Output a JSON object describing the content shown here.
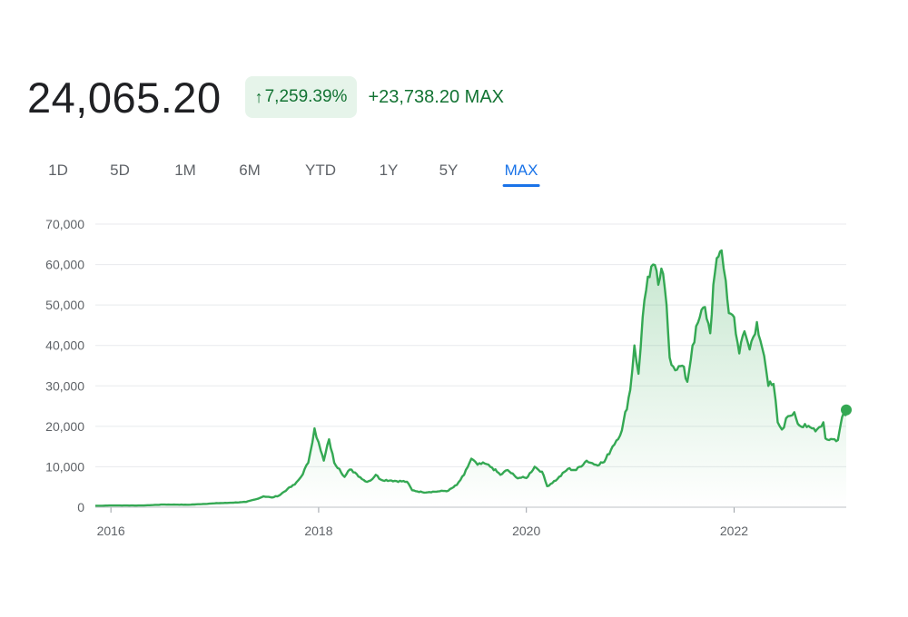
{
  "header": {
    "price": "24,065.20",
    "badge_arrow": "↑",
    "badge_percent": "7,259.39%",
    "change": "+23,738.20 MAX"
  },
  "tabs": [
    {
      "label": "1D",
      "active": false
    },
    {
      "label": "5D",
      "active": false
    },
    {
      "label": "1M",
      "active": false
    },
    {
      "label": "6M",
      "active": false
    },
    {
      "label": "YTD",
      "active": false
    },
    {
      "label": "1Y",
      "active": false
    },
    {
      "label": "5Y",
      "active": false
    },
    {
      "label": "MAX",
      "active": true
    }
  ],
  "colors": {
    "line": "#34a853",
    "fill": "#34a853",
    "gain_text": "#137333",
    "badge_bg": "#e6f4ea",
    "active_tab": "#1a73e8",
    "grid": "#e8eaed",
    "axis_text": "#5f6368"
  },
  "chart_data": {
    "type": "area",
    "title": "",
    "xlabel": "",
    "ylabel": "",
    "ylim": [
      0,
      70000
    ],
    "xlim": [
      2015.85,
      2023.08
    ],
    "grid": true,
    "y_ticks": [
      {
        "value": 0,
        "label": "0"
      },
      {
        "value": 10000,
        "label": "10,000"
      },
      {
        "value": 20000,
        "label": "20,000"
      },
      {
        "value": 30000,
        "label": "30,000"
      },
      {
        "value": 40000,
        "label": "40,000"
      },
      {
        "value": 50000,
        "label": "50,000"
      },
      {
        "value": 60000,
        "label": "60,000"
      },
      {
        "value": 70000,
        "label": "70,000"
      }
    ],
    "x_ticks": [
      {
        "value": 2016,
        "label": "2016"
      },
      {
        "value": 2018,
        "label": "2018"
      },
      {
        "value": 2020,
        "label": "2020"
      },
      {
        "value": 2022,
        "label": "2022"
      }
    ],
    "series": [
      {
        "values": [
          [
            2015.85,
            330
          ],
          [
            2016.0,
            430
          ],
          [
            2016.3,
            420
          ],
          [
            2016.5,
            650
          ],
          [
            2016.75,
            610
          ],
          [
            2017.0,
            960
          ],
          [
            2017.15,
            1100
          ],
          [
            2017.3,
            1300
          ],
          [
            2017.4,
            2000
          ],
          [
            2017.47,
            2700
          ],
          [
            2017.55,
            2400
          ],
          [
            2017.62,
            2900
          ],
          [
            2017.7,
            4500
          ],
          [
            2017.77,
            5600
          ],
          [
            2017.83,
            7500
          ],
          [
            2017.9,
            11000
          ],
          [
            2017.96,
            19500
          ],
          [
            2018.02,
            14000
          ],
          [
            2018.05,
            11500
          ],
          [
            2018.1,
            16800
          ],
          [
            2018.15,
            11000
          ],
          [
            2018.2,
            9500
          ],
          [
            2018.25,
            7500
          ],
          [
            2018.3,
            9300
          ],
          [
            2018.35,
            8600
          ],
          [
            2018.4,
            7400
          ],
          [
            2018.45,
            6400
          ],
          [
            2018.5,
            6600
          ],
          [
            2018.55,
            8000
          ],
          [
            2018.6,
            6800
          ],
          [
            2018.7,
            6600
          ],
          [
            2018.85,
            6300
          ],
          [
            2018.9,
            4200
          ],
          [
            2019.0,
            3700
          ],
          [
            2019.15,
            3900
          ],
          [
            2019.25,
            4100
          ],
          [
            2019.33,
            5500
          ],
          [
            2019.4,
            8000
          ],
          [
            2019.47,
            12000
          ],
          [
            2019.53,
            10500
          ],
          [
            2019.6,
            10800
          ],
          [
            2019.67,
            9800
          ],
          [
            2019.75,
            8000
          ],
          [
            2019.82,
            9200
          ],
          [
            2019.9,
            7400
          ],
          [
            2020.0,
            7200
          ],
          [
            2020.08,
            10000
          ],
          [
            2020.15,
            8800
          ],
          [
            2020.2,
            5200
          ],
          [
            2020.3,
            7000
          ],
          [
            2020.4,
            9500
          ],
          [
            2020.48,
            9200
          ],
          [
            2020.58,
            11500
          ],
          [
            2020.67,
            10500
          ],
          [
            2020.75,
            11200
          ],
          [
            2020.83,
            15000
          ],
          [
            2020.92,
            19000
          ],
          [
            2021.0,
            29000
          ],
          [
            2021.04,
            40000
          ],
          [
            2021.08,
            33000
          ],
          [
            2021.12,
            47000
          ],
          [
            2021.17,
            57000
          ],
          [
            2021.22,
            60000
          ],
          [
            2021.27,
            55000
          ],
          [
            2021.3,
            59000
          ],
          [
            2021.35,
            50000
          ],
          [
            2021.38,
            37000
          ],
          [
            2021.45,
            34000
          ],
          [
            2021.5,
            35000
          ],
          [
            2021.55,
            31000
          ],
          [
            2021.6,
            40000
          ],
          [
            2021.67,
            47000
          ],
          [
            2021.72,
            49500
          ],
          [
            2021.77,
            43000
          ],
          [
            2021.8,
            55000
          ],
          [
            2021.85,
            62000
          ],
          [
            2021.88,
            63500
          ],
          [
            2021.92,
            56000
          ],
          [
            2021.95,
            48000
          ],
          [
            2022.0,
            47000
          ],
          [
            2022.05,
            38000
          ],
          [
            2022.1,
            43500
          ],
          [
            2022.15,
            39000
          ],
          [
            2022.22,
            45800
          ],
          [
            2022.27,
            39500
          ],
          [
            2022.33,
            30000
          ],
          [
            2022.38,
            30500
          ],
          [
            2022.42,
            21000
          ],
          [
            2022.46,
            19200
          ],
          [
            2022.52,
            22500
          ],
          [
            2022.58,
            23500
          ],
          [
            2022.63,
            20200
          ],
          [
            2022.7,
            19800
          ],
          [
            2022.75,
            19500
          ],
          [
            2022.8,
            19300
          ],
          [
            2022.86,
            21000
          ],
          [
            2022.88,
            17000
          ],
          [
            2022.95,
            16800
          ],
          [
            2023.0,
            16600
          ],
          [
            2023.03,
            21000
          ],
          [
            2023.05,
            23000
          ],
          [
            2023.07,
            22800
          ],
          [
            2023.08,
            24065
          ]
        ]
      }
    ]
  }
}
